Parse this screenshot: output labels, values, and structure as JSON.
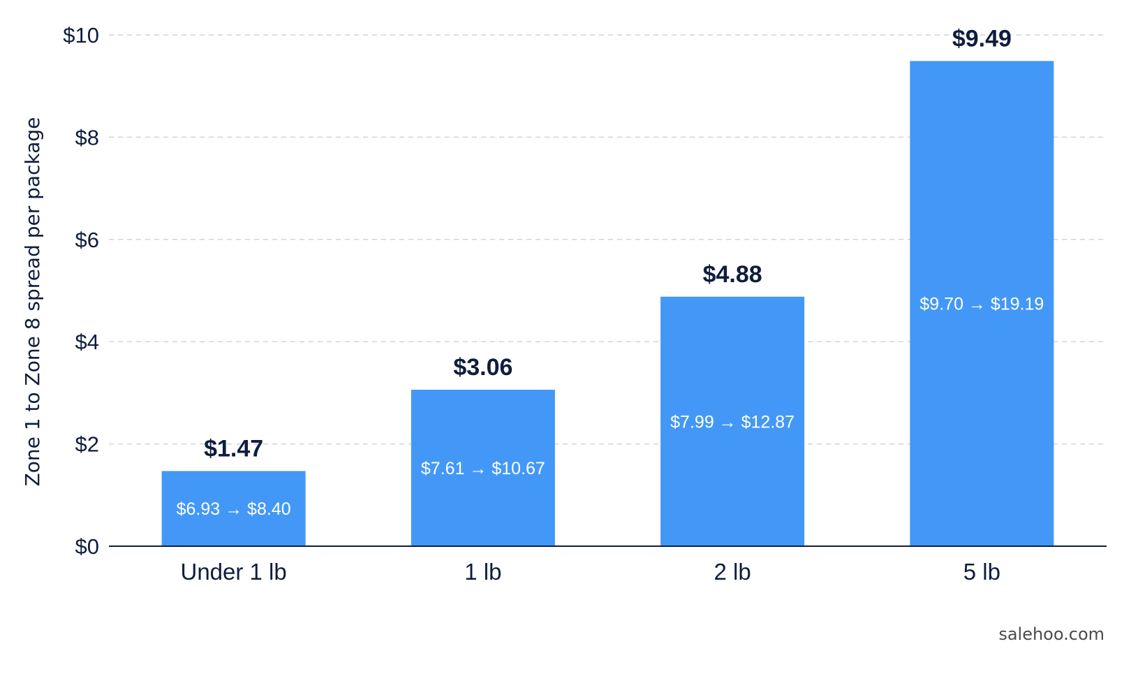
{
  "chart_data": {
    "type": "bar",
    "categories": [
      "Under 1 lb",
      "1 lb",
      "2 lb",
      "5 lb"
    ],
    "values": [
      1.47,
      3.06,
      4.88,
      9.49
    ],
    "value_labels": [
      "$1.47",
      "$3.06",
      "$4.88",
      "$9.49"
    ],
    "inner_labels": [
      "$6.93 → $8.40",
      "$7.61 → $10.67",
      "$7.99 → $12.87",
      "$9.70 → $19.19"
    ],
    "ylabel": "Zone 1 to Zone 8 spread per package",
    "xlabel": "",
    "ylim": [
      0,
      10
    ],
    "yticks": [
      0,
      2,
      4,
      6,
      8,
      10
    ],
    "ytick_labels": [
      "$0",
      "$2",
      "$4",
      "$6",
      "$8",
      "$10"
    ],
    "grid": true,
    "bar_color": "#4398f7"
  },
  "source": "salehoo.com"
}
